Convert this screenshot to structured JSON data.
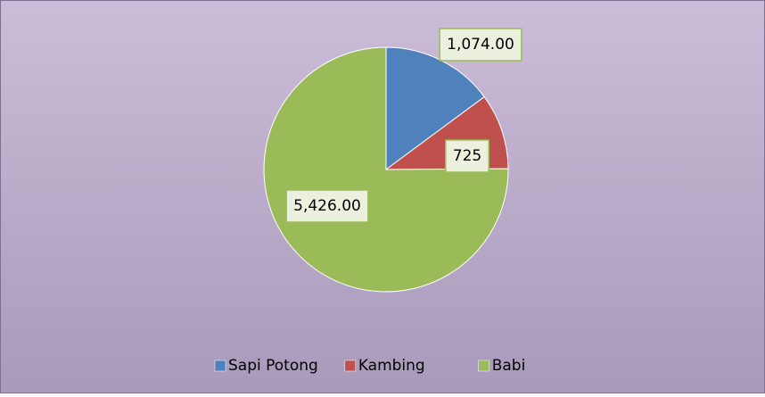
{
  "chart_data": {
    "type": "pie",
    "categories": [
      "Sapi Potong",
      "Kambing",
      "Babi"
    ],
    "values": [
      1074,
      725,
      5426
    ],
    "value_labels": [
      "1,074.00",
      "725",
      "5,426.00"
    ],
    "colors": [
      "#4f81bd",
      "#c0504d",
      "#9bbb59"
    ],
    "legend": "bottom"
  }
}
